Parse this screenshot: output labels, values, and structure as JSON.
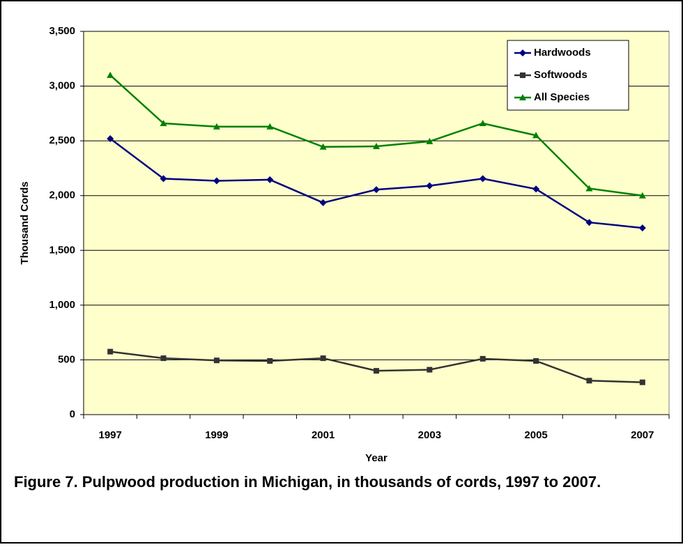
{
  "chart_data": {
    "type": "line",
    "caption": "Figure 7. Pulpwood production in Michigan, in thousands of cords, 1997 to 2007.",
    "x_label": "Year",
    "y_label": "Thousand Cords",
    "categories": [
      "1997",
      null,
      "1999",
      null,
      "2001",
      null,
      "2003",
      null,
      "2005",
      null,
      "2007"
    ],
    "series": [
      {
        "name": "Hardwoods",
        "color": "#000080",
        "marker": "diamond",
        "values": [
          2520,
          2155,
          2135,
          2145,
          1935,
          2055,
          2090,
          2155,
          2060,
          1755,
          1705
        ]
      },
      {
        "name": "Softwoods",
        "color": "#333333",
        "marker": "square",
        "values": [
          575,
          515,
          495,
          490,
          515,
          400,
          410,
          510,
          490,
          310,
          295
        ]
      },
      {
        "name": "All Species",
        "color": "#008000",
        "marker": "triangle",
        "values": [
          3100,
          2660,
          2630,
          2630,
          2445,
          2450,
          2495,
          2660,
          2550,
          2065,
          2000
        ]
      }
    ],
    "ylim": [
      0,
      3500
    ],
    "yticks": [
      0,
      500,
      {
        "value": 1000,
        "label": "1,000"
      },
      {
        "value": 1500,
        "label": "1,500"
      },
      {
        "value": 2000,
        "label": "2,000"
      },
      {
        "value": 2500,
        "label": "2,500"
      },
      {
        "value": 3000,
        "label": "3,000"
      },
      {
        "value": 3500,
        "label": "3,500"
      }
    ],
    "grid": true,
    "legend": "top-right",
    "background": "#ffffcc"
  }
}
